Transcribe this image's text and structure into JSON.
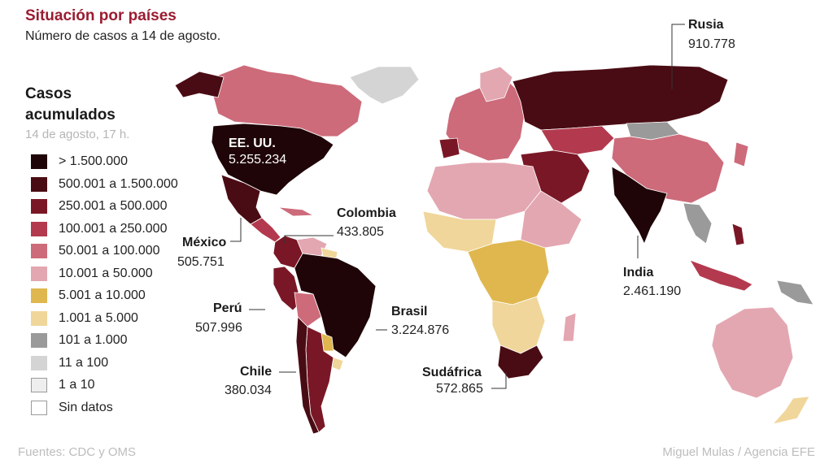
{
  "header": {
    "title": "Situación por países",
    "subtitle": "Número de casos a 14 de agosto."
  },
  "legend": {
    "title": "Casos acumulados",
    "date": "14 de agosto, 17 h.",
    "items": [
      {
        "label": "> 1.500.000",
        "color": "#1f0508"
      },
      {
        "label": "500.001 a 1.500.000",
        "color": "#4a0c14"
      },
      {
        "label": "250.001 a 500.000",
        "color": "#7a1726"
      },
      {
        "label": "100.001 a 250.000",
        "color": "#b33a4e"
      },
      {
        "label": "50.001 a 100.000",
        "color": "#cd6b7a"
      },
      {
        "label": "10.001 a 50.000",
        "color": "#e3a7b1"
      },
      {
        "label": "5.001 a 10.000",
        "color": "#e0b74f"
      },
      {
        "label": "1.001 a 5.000",
        "color": "#f0d69a"
      },
      {
        "label": "101 a 1.000",
        "color": "#9a9a9a"
      },
      {
        "label": "11 a 100",
        "color": "#d4d4d4"
      },
      {
        "label": "1 a 10",
        "color": "#eeeeee"
      },
      {
        "label": "Sin datos",
        "color": "#ffffff"
      }
    ]
  },
  "callouts": {
    "usa": {
      "name": "EE. UU.",
      "value": "5.255.234"
    },
    "mexico": {
      "name": "México",
      "value": "505.751"
    },
    "colombia": {
      "name": "Colombia",
      "value": "433.805"
    },
    "peru": {
      "name": "Perú",
      "value": "507.996"
    },
    "brasil": {
      "name": "Brasil",
      "value": "3.224.876"
    },
    "chile": {
      "name": "Chile",
      "value": "380.034"
    },
    "sudafrica": {
      "name": "Sudáfrica",
      "value": "572.865"
    },
    "india": {
      "name": "India",
      "value": "2.461.190"
    },
    "rusia": {
      "name": "Rusia",
      "value": "910.778"
    }
  },
  "footer": {
    "sources": "Fuentes: CDC y OMS",
    "credit": "Miguel Mulas / Agencia EFE"
  }
}
